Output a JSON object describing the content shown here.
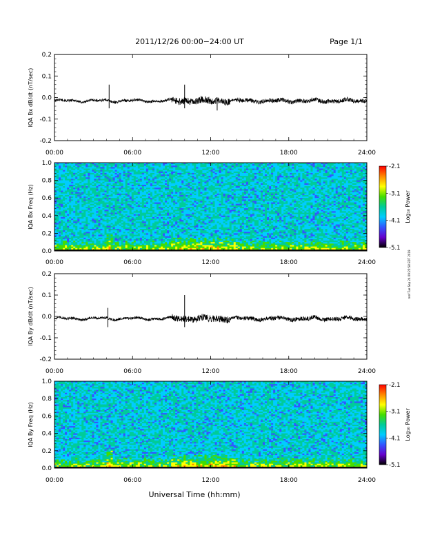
{
  "header": {
    "title": "2011/12/26  00:00−24:00 UT",
    "page": "Page 1/1"
  },
  "footer": {
    "xlabel": "Universal Time (hh:mm)",
    "side_note": "mef Tue Sep 24 09:25:58 EDT 2019"
  },
  "colorbar": {
    "label": "Log₁₀ Power",
    "ticks": [
      "-2.1",
      "-3.1",
      "-4.1",
      "-5.1"
    ],
    "colors": [
      "#ff0000",
      "#ff8800",
      "#ffff00",
      "#44dd00",
      "#00cc99",
      "#00ccff",
      "#3355ff",
      "#6600cc",
      "#000000"
    ]
  },
  "chart_data": [
    {
      "type": "line",
      "title": "",
      "ylabel": "IQA Bx dB/dt (nT/sec)",
      "xlabel": "",
      "x_ticks": [
        "00:00",
        "06:00",
        "12:00",
        "18:00",
        "24:00"
      ],
      "y_ticks": [
        "0.2",
        "0.1",
        "0.0",
        "-0.1",
        "-0.2"
      ],
      "xlim": [
        0,
        24
      ],
      "ylim": [
        -0.2,
        0.2
      ],
      "baseline": -0.015,
      "events": [
        {
          "x": 4.2,
          "value": 0.06
        },
        {
          "x": 4.2,
          "value": -0.05
        },
        {
          "x": 10.0,
          "value": 0.06
        },
        {
          "x": 10.0,
          "value": -0.05
        },
        {
          "x": 12.5,
          "value": -0.06
        }
      ]
    },
    {
      "type": "heatmap",
      "title": "",
      "ylabel": "IQA Bx Freq (Hz)",
      "x_ticks": [
        "00:00",
        "06:00",
        "12:00",
        "18:00",
        "24:00"
      ],
      "y_ticks": [
        "1.0",
        "0.8",
        "0.6",
        "0.4",
        "0.2",
        "0.0"
      ],
      "xlim": [
        0,
        24
      ],
      "ylim": [
        0.0,
        1.0
      ],
      "zlim": [
        -5.1,
        -2.1
      ],
      "colorbar_label": "Log₁₀ Power"
    },
    {
      "type": "line",
      "title": "",
      "ylabel": "IQA By dB/dt (nT/sec)",
      "xlabel": "",
      "x_ticks": [
        "00:00",
        "06:00",
        "12:00",
        "18:00",
        "24:00"
      ],
      "y_ticks": [
        "0.2",
        "0.1",
        "0.0",
        "-0.1",
        "-0.2"
      ],
      "xlim": [
        0,
        24
      ],
      "ylim": [
        -0.2,
        0.2
      ],
      "baseline": -0.01,
      "events": [
        {
          "x": 4.1,
          "value": 0.04
        },
        {
          "x": 4.1,
          "value": -0.05
        },
        {
          "x": 10.0,
          "value": 0.1
        },
        {
          "x": 10.0,
          "value": -0.05
        }
      ]
    },
    {
      "type": "heatmap",
      "title": "",
      "ylabel": "IQA By Freq (Hz)",
      "x_ticks": [
        "00:00",
        "06:00",
        "12:00",
        "18:00",
        "24:00"
      ],
      "y_ticks": [
        "1.0",
        "0.8",
        "0.6",
        "0.4",
        "0.2",
        "0.0"
      ],
      "xlim": [
        0,
        24
      ],
      "ylim": [
        0.0,
        1.0
      ],
      "zlim": [
        -5.1,
        -2.1
      ],
      "colorbar_label": "Log₁₀ Power"
    }
  ]
}
